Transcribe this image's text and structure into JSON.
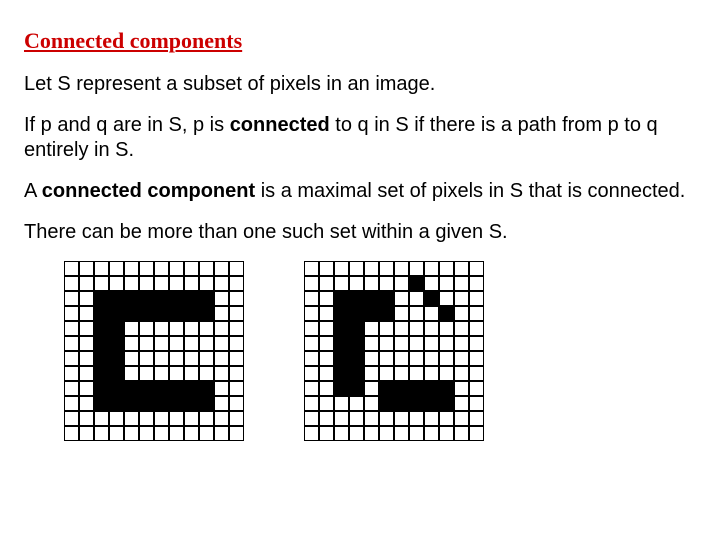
{
  "title": {
    "text": "Connected components",
    "color": "#cc0000"
  },
  "paragraphs": {
    "p1": "Let S represent a subset of pixels in an image.",
    "p2a": "If p and q are in S, p is ",
    "p2b": "connected",
    "p2c": " to q in S if there is a path from p to q entirely in S.",
    "p3a": "A ",
    "p3b": "connected component",
    "p3c": " is a maximal set of pixels in S that is connected.",
    "p4": "There can be more than one such set within a given S."
  },
  "grids": {
    "cols": 12,
    "rows": 12,
    "grid1": [
      [
        0,
        0,
        0,
        0,
        0,
        0,
        0,
        0,
        0,
        0,
        0,
        0
      ],
      [
        0,
        0,
        0,
        0,
        0,
        0,
        0,
        0,
        0,
        0,
        0,
        0
      ],
      [
        0,
        0,
        1,
        1,
        1,
        1,
        1,
        1,
        1,
        1,
        0,
        0
      ],
      [
        0,
        0,
        1,
        1,
        1,
        1,
        1,
        1,
        1,
        1,
        0,
        0
      ],
      [
        0,
        0,
        1,
        1,
        0,
        0,
        0,
        0,
        0,
        0,
        0,
        0
      ],
      [
        0,
        0,
        1,
        1,
        0,
        0,
        0,
        0,
        0,
        0,
        0,
        0
      ],
      [
        0,
        0,
        1,
        1,
        0,
        0,
        0,
        0,
        0,
        0,
        0,
        0
      ],
      [
        0,
        0,
        1,
        1,
        0,
        0,
        0,
        0,
        0,
        0,
        0,
        0
      ],
      [
        0,
        0,
        1,
        1,
        1,
        1,
        1,
        1,
        1,
        1,
        0,
        0
      ],
      [
        0,
        0,
        1,
        1,
        1,
        1,
        1,
        1,
        1,
        1,
        0,
        0
      ],
      [
        0,
        0,
        0,
        0,
        0,
        0,
        0,
        0,
        0,
        0,
        0,
        0
      ],
      [
        0,
        0,
        0,
        0,
        0,
        0,
        0,
        0,
        0,
        0,
        0,
        0
      ]
    ],
    "grid2": [
      [
        0,
        0,
        0,
        0,
        0,
        0,
        0,
        0,
        0,
        0,
        0,
        0
      ],
      [
        0,
        0,
        0,
        0,
        0,
        0,
        0,
        1,
        0,
        0,
        0,
        0
      ],
      [
        0,
        0,
        1,
        1,
        1,
        1,
        0,
        0,
        1,
        0,
        0,
        0
      ],
      [
        0,
        0,
        1,
        1,
        1,
        1,
        0,
        0,
        0,
        1,
        0,
        0
      ],
      [
        0,
        0,
        1,
        1,
        0,
        0,
        0,
        0,
        0,
        0,
        0,
        0
      ],
      [
        0,
        0,
        1,
        1,
        0,
        0,
        0,
        0,
        0,
        0,
        0,
        0
      ],
      [
        0,
        0,
        1,
        1,
        0,
        0,
        0,
        0,
        0,
        0,
        0,
        0
      ],
      [
        0,
        0,
        1,
        1,
        0,
        0,
        0,
        0,
        0,
        0,
        0,
        0
      ],
      [
        0,
        0,
        1,
        1,
        0,
        1,
        1,
        1,
        1,
        1,
        0,
        0
      ],
      [
        0,
        0,
        0,
        0,
        0,
        1,
        1,
        1,
        1,
        1,
        0,
        0
      ],
      [
        0,
        0,
        0,
        0,
        0,
        0,
        0,
        0,
        0,
        0,
        0,
        0
      ],
      [
        0,
        0,
        0,
        0,
        0,
        0,
        0,
        0,
        0,
        0,
        0,
        0
      ]
    ]
  }
}
